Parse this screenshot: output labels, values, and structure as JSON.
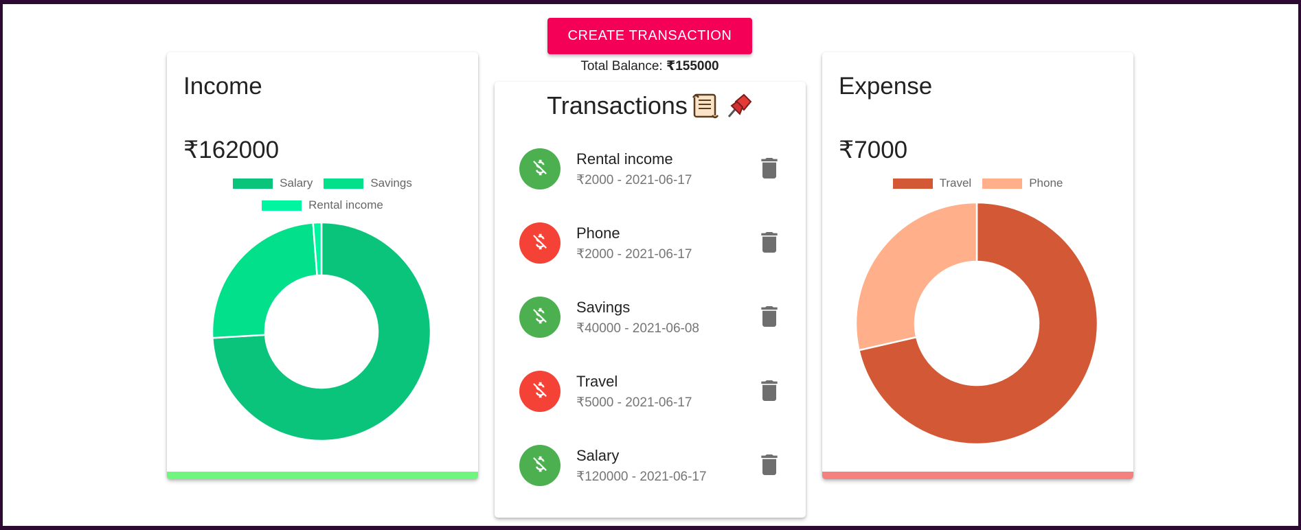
{
  "actions": {
    "create_label": "CREATE TRANSACTION"
  },
  "balance": {
    "label": "Total Balance:",
    "amount": "₹155000"
  },
  "income": {
    "title": "Income",
    "amount": "₹162000",
    "accent_color": "#70f57f",
    "legend": [
      {
        "label": "Salary",
        "color": "#0bc47c"
      },
      {
        "label": "Savings",
        "color": "#02e08c"
      },
      {
        "label": "Rental income",
        "color": "#00f5a0"
      }
    ]
  },
  "expense": {
    "title": "Expense",
    "amount": "₹7000",
    "accent_color": "#f58080",
    "legend": [
      {
        "label": "Travel",
        "color": "#d35936"
      },
      {
        "label": "Phone",
        "color": "#ffaf89"
      }
    ]
  },
  "transactions": {
    "title": "Transactions",
    "title_icons": [
      "scroll-icon",
      "pushpin-icon"
    ],
    "items": [
      {
        "name": "Rental income",
        "detail": "₹2000 - 2021-06-17",
        "kind": "income",
        "icon": "dollar-off-icon"
      },
      {
        "name": "Phone",
        "detail": "₹2000 - 2021-06-17",
        "kind": "expense",
        "icon": "dollar-off-icon"
      },
      {
        "name": "Savings",
        "detail": "₹40000 - 2021-06-08",
        "kind": "income",
        "icon": "dollar-off-icon"
      },
      {
        "name": "Travel",
        "detail": "₹5000 - 2021-06-17",
        "kind": "expense",
        "icon": "dollar-off-icon"
      },
      {
        "name": "Salary",
        "detail": "₹120000 - 2021-06-17",
        "kind": "income",
        "icon": "dollar-off-icon"
      }
    ]
  },
  "chart_data": [
    {
      "type": "pie",
      "categories": [
        "Salary",
        "Savings",
        "Rental income"
      ],
      "values": [
        120000,
        40000,
        2000
      ],
      "colors": [
        "#0bc47c",
        "#02e08c",
        "#00f5a0"
      ],
      "legend_position": "top"
    },
    {
      "type": "pie",
      "categories": [
        "Travel",
        "Phone"
      ],
      "values": [
        5000,
        2000
      ],
      "colors": [
        "#d35936",
        "#ffaf89"
      ],
      "legend_position": "top"
    }
  ]
}
